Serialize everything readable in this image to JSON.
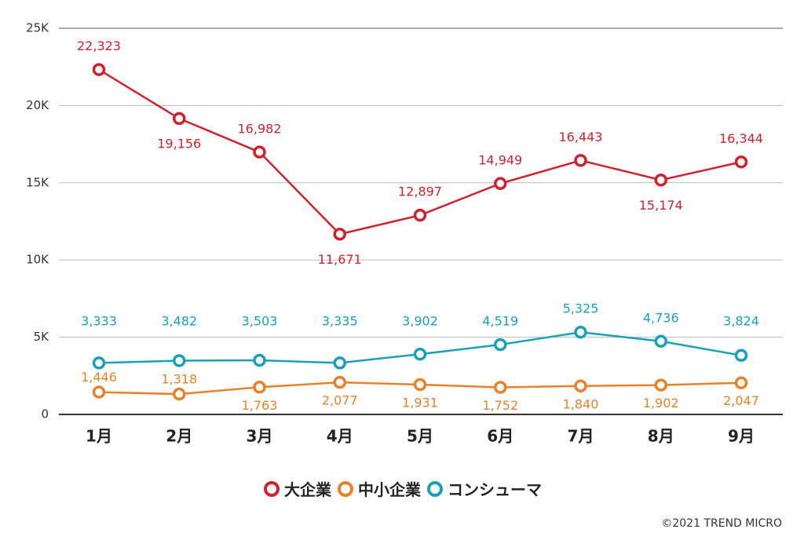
{
  "chart_data": {
    "type": "line",
    "categories": [
      "1月",
      "2月",
      "3月",
      "4月",
      "5月",
      "6月",
      "7月",
      "8月",
      "9月"
    ],
    "series": [
      {
        "name": "大企業",
        "color": "#d0212f",
        "values": [
          22323,
          19156,
          16982,
          11671,
          12897,
          14949,
          16443,
          15174,
          16344
        ],
        "value_labels": [
          "22,323",
          "19,156",
          "16,982",
          "11,671",
          "12,897",
          "14,949",
          "16,443",
          "15,174",
          "16,344"
        ]
      },
      {
        "name": "中小企業",
        "color": "#e8822a",
        "values": [
          1446,
          1318,
          1763,
          2077,
          1931,
          1752,
          1840,
          1902,
          2047
        ],
        "value_labels": [
          "1,446",
          "1,318",
          "1,763",
          "2,077",
          "1,931",
          "1,752",
          "1,840",
          "1,902",
          "2,047"
        ]
      },
      {
        "name": "コンシューマ",
        "color": "#1aa0b9",
        "values": [
          3333,
          3482,
          3503,
          3335,
          3902,
          4519,
          5325,
          4736,
          3824
        ],
        "value_labels": [
          "3,333",
          "3,482",
          "3,503",
          "3,335",
          "3,902",
          "4,519",
          "5,325",
          "4,736",
          "3,824"
        ]
      }
    ],
    "ylim": [
      0,
      25000
    ],
    "yticks": [
      0,
      {
        "value": 5000,
        "label": "5K"
      },
      {
        "value": 10000,
        "label": "10K"
      },
      {
        "value": 15000,
        "label": "15K"
      },
      {
        "value": 20000,
        "label": "20K"
      },
      {
        "value": 25000,
        "label": "25K"
      }
    ],
    "grid": true,
    "legend": "bottom",
    "credit": "©2021 TREND MICRO"
  }
}
